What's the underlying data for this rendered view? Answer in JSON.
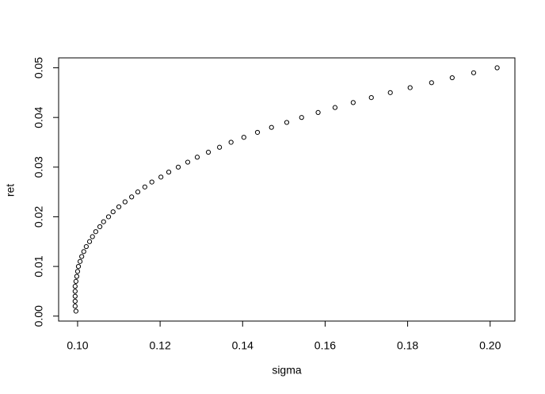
{
  "chart_data": {
    "type": "scatter",
    "x_label": "sigma",
    "y_label": "ret",
    "x": [
      0.0996,
      0.0994,
      0.0994,
      0.0994,
      0.0994,
      0.0994,
      0.0996,
      0.0998,
      0.1,
      0.1002,
      0.1006,
      0.101,
      0.1015,
      0.1021,
      0.1029,
      0.1036,
      0.1044,
      0.1054,
      0.1063,
      0.1075,
      0.1086,
      0.11,
      0.1115,
      0.1131,
      0.1146,
      0.1163,
      0.118,
      0.1202,
      0.1221,
      0.1244,
      0.1267,
      0.129,
      0.1317,
      0.1344,
      0.1372,
      0.1403,
      0.1436,
      0.147,
      0.1507,
      0.1543,
      0.1583,
      0.1624,
      0.1668,
      0.1712,
      0.1758,
      0.1806,
      0.1858,
      0.1908,
      0.196,
      0.2017
    ],
    "values": [
      0.001,
      0.002,
      0.003,
      0.004,
      0.005,
      0.006,
      0.007,
      0.008,
      0.009,
      0.01,
      0.011,
      0.012,
      0.013,
      0.014,
      0.015,
      0.016,
      0.017,
      0.018,
      0.019,
      0.02,
      0.021,
      0.022,
      0.023,
      0.024,
      0.025,
      0.026,
      0.027,
      0.028,
      0.029,
      0.03,
      0.031,
      0.032,
      0.033,
      0.034,
      0.035,
      0.036,
      0.037,
      0.038,
      0.039,
      0.04,
      0.041,
      0.042,
      0.043,
      0.044,
      0.045,
      0.046,
      0.047,
      0.048,
      0.049,
      0.05
    ],
    "color": "#000000",
    "xlim": [
      0.0954,
      0.206
    ],
    "ylim": [
      -0.001,
      0.052
    ],
    "xticks": [
      {
        "value": 0.1,
        "label": "0.10"
      },
      0.12,
      0.14,
      0.16,
      0.18,
      {
        "value": 0.2,
        "label": "0.20"
      }
    ],
    "yticks": [
      {
        "value": 0,
        "label": "0.00"
      },
      0.01,
      0.02,
      0.03,
      0.04,
      0.05
    ]
  }
}
